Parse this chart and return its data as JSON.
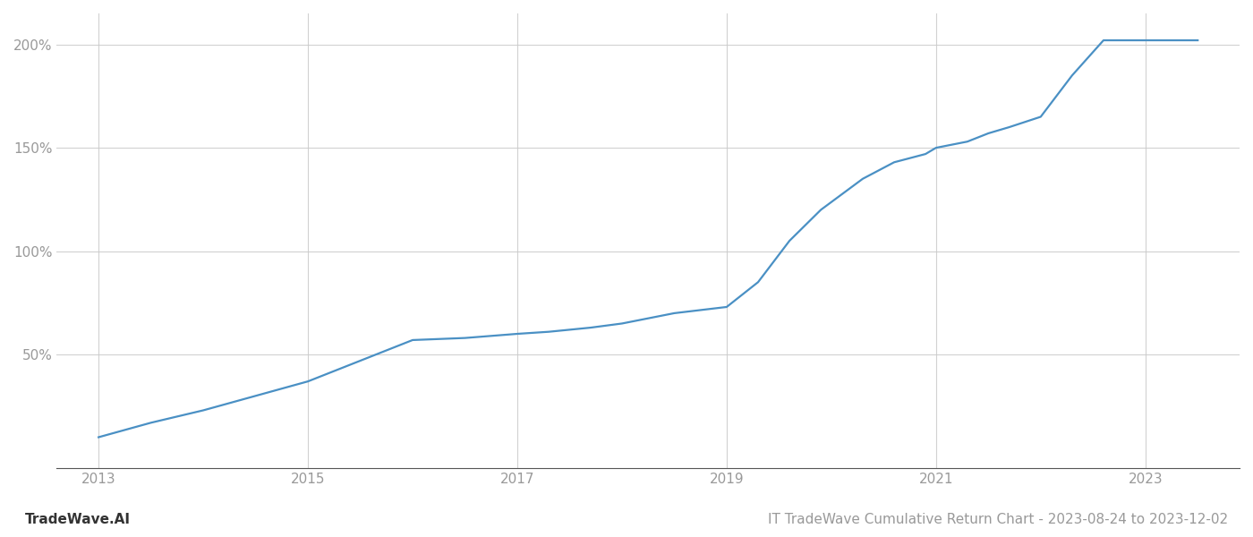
{
  "title": "IT TradeWave Cumulative Return Chart - 2023-08-24 to 2023-12-02",
  "watermark": "TradeWave.AI",
  "line_color": "#4a90c4",
  "background_color": "#ffffff",
  "grid_color": "#cccccc",
  "x_years": [
    2013.0,
    2013.5,
    2014.0,
    2014.5,
    2015.0,
    2015.5,
    2016.0,
    2016.5,
    2017.0,
    2017.3,
    2017.7,
    2018.0,
    2018.5,
    2019.0,
    2019.3,
    2019.6,
    2019.9,
    2020.3,
    2020.6,
    2020.9,
    2021.0,
    2021.3,
    2021.5,
    2021.7,
    2022.0,
    2022.3,
    2022.6,
    2023.0,
    2023.5
  ],
  "y_values": [
    10,
    17,
    23,
    30,
    37,
    47,
    57,
    58,
    60,
    61,
    63,
    65,
    70,
    73,
    85,
    105,
    120,
    135,
    143,
    147,
    150,
    153,
    157,
    160,
    165,
    185,
    202,
    202,
    202
  ],
  "yticks": [
    50,
    100,
    150,
    200
  ],
  "ytick_labels": [
    "50%",
    "100%",
    "150%",
    "200%"
  ],
  "xticks": [
    2013,
    2015,
    2017,
    2019,
    2021,
    2023
  ],
  "xlim": [
    2012.6,
    2023.9
  ],
  "ylim": [
    -5,
    215
  ],
  "line_width": 1.6,
  "tick_color": "#999999",
  "title_fontsize": 11,
  "watermark_fontsize": 11
}
